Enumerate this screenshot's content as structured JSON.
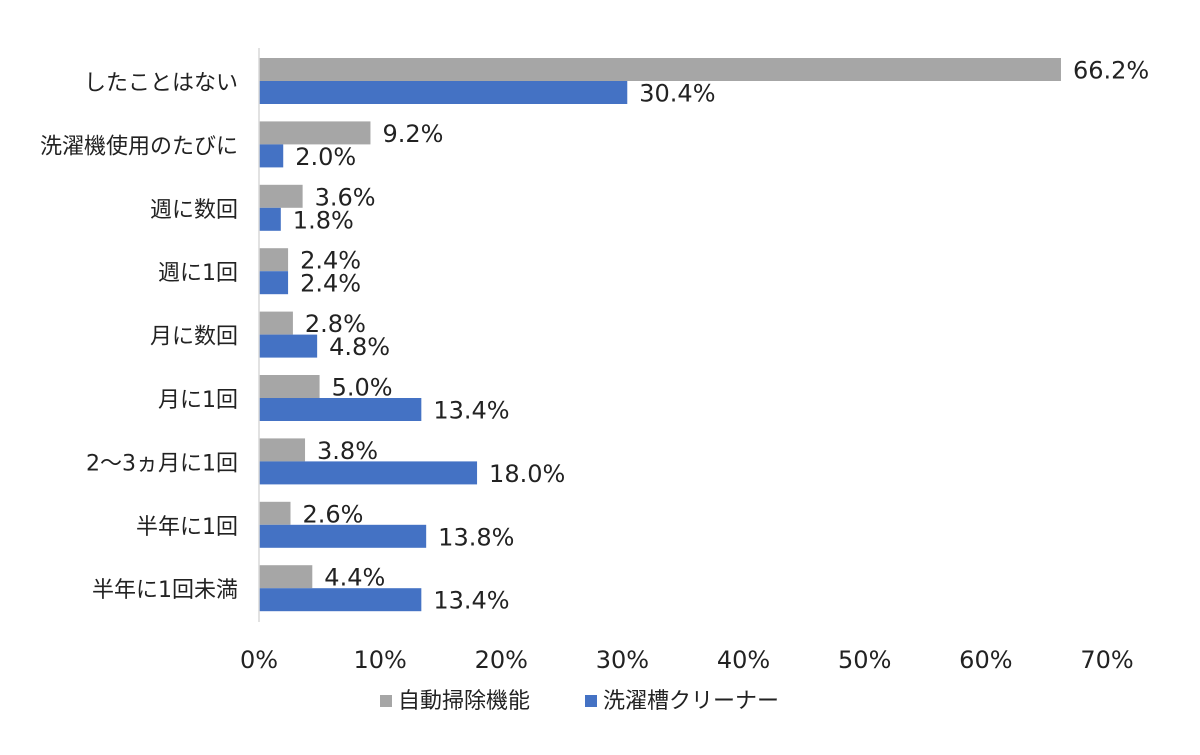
{
  "chart_data": {
    "type": "bar",
    "orientation": "horizontal",
    "categories": [
      "したことはない",
      "洗濯機使用のたびに",
      "週に数回",
      "週に1回",
      "月に数回",
      "月に1回",
      "2～3ヵ月に1回",
      "半年に1回",
      "半年に1回未満"
    ],
    "series": [
      {
        "name": "自動掃除機能",
        "color": "#a6a6a6",
        "values": [
          66.2,
          9.2,
          3.6,
          2.4,
          2.8,
          5.0,
          3.8,
          2.6,
          4.4
        ],
        "labels": [
          "66.2%",
          "9.2%",
          "3.6%",
          "2.4%",
          "2.8%",
          "5.0%",
          "3.8%",
          "2.6%",
          "4.4%"
        ]
      },
      {
        "name": "洗濯槽クリーナー",
        "color": "#4472c4",
        "values": [
          30.4,
          2.0,
          1.8,
          2.4,
          4.8,
          13.4,
          18.0,
          13.8,
          13.4
        ],
        "labels": [
          "30.4%",
          "2.0%",
          "1.8%",
          "2.4%",
          "4.8%",
          "13.4%",
          "18.0%",
          "13.8%",
          "13.4%"
        ]
      }
    ],
    "x_ticks": [
      "0%",
      "10%",
      "20%",
      "30%",
      "40%",
      "50%",
      "60%",
      "70%"
    ],
    "xlim": [
      0,
      70
    ],
    "unit": "%",
    "grid": false,
    "legend_position": "bottom"
  }
}
